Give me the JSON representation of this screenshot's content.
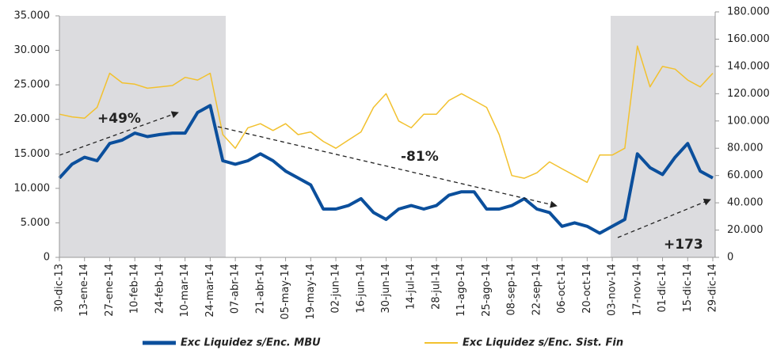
{
  "chart_data": {
    "type": "line",
    "categories": [
      "30-dic-13",
      null,
      "13-ene-14",
      null,
      "27-ene-14",
      null,
      "10-feb-14",
      null,
      "24-feb-14",
      null,
      "10-mar-14",
      null,
      "24-mar-14",
      null,
      "07-abr-14",
      null,
      "21-abr-14",
      null,
      "05-may-14",
      null,
      "19-may-14",
      null,
      "02-jun-14",
      null,
      "16-jun-14",
      null,
      "30-jun-14",
      null,
      "14-jul-14",
      null,
      "28-jul-14",
      null,
      "11-ago-14",
      null,
      "25-ago-14",
      null,
      "08-sep-14",
      null,
      "22-sep-14",
      null,
      "06-oct-14",
      null,
      "20-oct-14",
      null,
      "03-nov-14",
      null,
      "17-nov-14",
      null,
      "01-dic-14",
      null,
      "15-dic-14",
      null,
      "29-dic-14"
    ],
    "series": [
      {
        "name": "Exc  Liquidez s/Enc. MBU",
        "color": "#0b4f9c",
        "axis": "y",
        "values": [
          11500,
          13500,
          14500,
          14000,
          16500,
          17000,
          18000,
          17500,
          17800,
          18000,
          18000,
          21000,
          22000,
          14000,
          13500,
          14000,
          15000,
          14000,
          12500,
          11500,
          10500,
          7000,
          7000,
          7500,
          8500,
          6500,
          5500,
          7000,
          7500,
          7000,
          7500,
          9000,
          9500,
          9500,
          7000,
          7000,
          7500,
          8500,
          7000,
          6500,
          4500,
          5000,
          4500,
          3500,
          4500,
          5500,
          15000,
          13000,
          12000,
          14500,
          16500,
          12500,
          11500
        ]
      },
      {
        "name": "Exc  Liquidez s/Enc. Sist. Fin",
        "color": "#f2c12e",
        "axis": "y2",
        "values": [
          105000,
          103000,
          102000,
          110000,
          135000,
          128000,
          127000,
          124000,
          125000,
          126000,
          132000,
          130000,
          135000,
          90000,
          80000,
          95000,
          98000,
          93000,
          98000,
          90000,
          92000,
          85000,
          80000,
          86000,
          92000,
          110000,
          120000,
          100000,
          95000,
          105000,
          105000,
          115000,
          120000,
          115000,
          110000,
          90000,
          60000,
          58000,
          62000,
          70000,
          65000,
          60000,
          55000,
          75000,
          75000,
          80000,
          155000,
          125000,
          140000,
          138000,
          130000,
          125000,
          135000
        ]
      }
    ],
    "ylim": [
      0,
      35000
    ],
    "yticks": [
      0,
      {
        "value": 5000,
        "label": "5.000"
      },
      {
        "value": 10000,
        "label": "10.000"
      },
      {
        "value": 15000,
        "label": "15.000"
      },
      {
        "value": 20000,
        "label": "20.000"
      },
      {
        "value": 25000,
        "label": "25.000"
      },
      {
        "value": 30000,
        "label": "30.000"
      },
      {
        "value": 35000,
        "label": "35.000"
      }
    ],
    "y2lim": [
      0,
      180000
    ],
    "y2ticks": [
      0,
      {
        "value": 20000,
        "label": "20.000"
      },
      {
        "value": 40000,
        "label": "40.000"
      },
      {
        "value": 60000,
        "label": "60.000"
      },
      {
        "value": 80000,
        "label": "80.000"
      },
      {
        "value": 100000,
        "label": "100.000"
      },
      {
        "value": 120000,
        "label": "120.000"
      },
      {
        "value": 140000,
        "label": "140.000"
      },
      {
        "value": 160000,
        "label": "160.000"
      },
      {
        "value": 180000,
        "label": "180.000"
      }
    ],
    "annotations": [
      "+49%",
      "-81%",
      "+173"
    ]
  }
}
